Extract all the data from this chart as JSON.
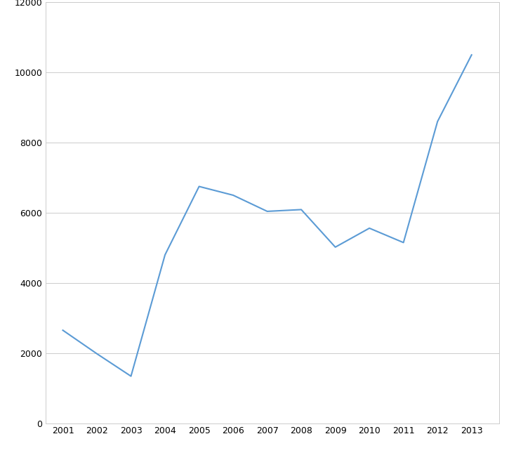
{
  "years": [
    2001,
    2002,
    2003,
    2004,
    2005,
    2006,
    2007,
    2008,
    2009,
    2010,
    2011,
    2012,
    2013
  ],
  "cases": [
    2650,
    1980,
    1340,
    4800,
    6750,
    6500,
    6040,
    6090,
    5020,
    5560,
    5150,
    8600,
    10500
  ],
  "line_color": "#5B9BD5",
  "line_width": 1.5,
  "ylim": [
    0,
    12000
  ],
  "yticks": [
    0,
    2000,
    4000,
    6000,
    8000,
    10000,
    12000
  ],
  "background_color": "#ffffff",
  "grid_color": "#cccccc",
  "tick_fontsize": 9,
  "spine_color": "#cccccc"
}
